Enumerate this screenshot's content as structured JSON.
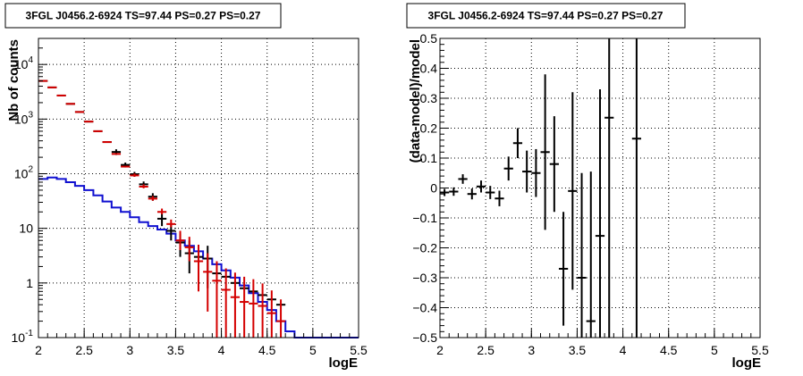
{
  "colors": {
    "data": "#000000",
    "model_total": "#d40000",
    "model_source": "#1010d0",
    "grid": "#000000"
  },
  "chart_data": [
    {
      "type": "line",
      "title": "3FGL J0456.2-6924 TS=97.44 PS=0.27 PS=0.27",
      "xlabel": "logE",
      "ylabel": "Nb of counts",
      "xlim": [
        2,
        5.5
      ],
      "ylim": [
        0.1,
        30000
      ],
      "yscale": "log",
      "grid": true,
      "xticks": [
        "2",
        "2.5",
        "3",
        "3.5",
        "4",
        "4.5",
        "5",
        "5.5"
      ],
      "yticks": [
        {
          "value": 0.1,
          "label": "10",
          "exp": "-1"
        },
        {
          "value": 1,
          "label": "1",
          "exp": ""
        },
        {
          "value": 10,
          "label": "10",
          "exp": ""
        },
        {
          "value": 100,
          "label": "10",
          "exp": "2"
        },
        {
          "value": 1000,
          "label": "10",
          "exp": "3"
        },
        {
          "value": 10000,
          "label": "10",
          "exp": "4"
        }
      ],
      "bin_width": 0.1,
      "series": [
        {
          "kind": "points",
          "color": "#000000",
          "x": [
            2.05,
            2.15,
            2.25,
            2.35,
            2.45,
            2.55,
            2.65,
            2.75,
            2.85,
            2.95,
            3.05,
            3.15,
            3.25,
            3.35,
            3.45,
            3.55,
            3.65,
            3.75,
            3.85,
            3.95,
            4.05,
            4.15,
            4.25,
            4.35,
            4.45,
            4.55,
            4.65
          ],
          "y": [
            5000,
            3800,
            2700,
            1900,
            1350,
            900,
            600,
            380,
            250,
            145,
            98,
            64,
            38,
            15,
            9,
            5.5,
            3.5,
            3.0,
            2.8,
            1.5,
            1.3,
            1.0,
            0.8,
            0.7,
            0.6,
            0.5,
            0.4
          ],
          "yerr_lo": [
            0,
            0,
            0,
            0,
            0,
            0,
            0,
            0,
            30,
            15,
            10,
            8,
            6,
            4,
            3,
            2.5,
            2.0,
            1.5,
            2,
            0,
            0,
            0,
            0,
            0,
            0,
            0,
            0
          ],
          "yerr_hi": [
            0,
            0,
            0,
            0,
            0,
            0,
            0,
            0,
            30,
            15,
            10,
            8,
            6,
            4,
            3,
            2.5,
            2.5,
            2.0,
            2,
            0,
            0,
            0,
            0,
            0,
            0,
            0,
            0
          ]
        },
        {
          "kind": "points",
          "color": "#d40000",
          "x": [
            2.05,
            2.15,
            2.25,
            2.35,
            2.45,
            2.55,
            2.65,
            2.75,
            2.85,
            2.95,
            3.05,
            3.15,
            3.25,
            3.35,
            3.45,
            3.55,
            3.65,
            3.75,
            3.85,
            3.95,
            4.05,
            4.15,
            4.25,
            4.35,
            4.45,
            4.55,
            4.65
          ],
          "y": [
            5000,
            3800,
            2700,
            1900,
            1350,
            900,
            600,
            380,
            230,
            135,
            93,
            58,
            35,
            20,
            12,
            6.0,
            4.5,
            2.5,
            1.6,
            1.1,
            0.75,
            0.55,
            0.45,
            0.42,
            0.38,
            0.28,
            0.2
          ],
          "yerr_lo": [
            0,
            0,
            0,
            0,
            0,
            0,
            0,
            0,
            0,
            0,
            5,
            4,
            3,
            2,
            1.5,
            2,
            2,
            1.8,
            1.3,
            1.0,
            0.65,
            0.45,
            0.4,
            0.38,
            0.34,
            0.24,
            0.18
          ],
          "yerr_hi": [
            0,
            0,
            0,
            0,
            0,
            0,
            0,
            0,
            0,
            0,
            8,
            6,
            4,
            3,
            2.5,
            3,
            2.5,
            2.5,
            1.9,
            1.4,
            1.1,
            1.0,
            0.85,
            0.75,
            0.6,
            0.45,
            0.3
          ]
        },
        {
          "kind": "step",
          "color": "#1010d0",
          "x": [
            2.05,
            2.15,
            2.25,
            2.35,
            2.45,
            2.55,
            2.65,
            2.75,
            2.85,
            2.95,
            3.05,
            3.15,
            3.25,
            3.35,
            3.45,
            3.55,
            3.65,
            3.75,
            3.85,
            3.95,
            4.05,
            4.15,
            4.25,
            4.35,
            4.45,
            4.55,
            4.65,
            4.75,
            4.85,
            4.95,
            5.05,
            5.15,
            5.25,
            5.35,
            5.45
          ],
          "y": [
            80,
            85,
            80,
            70,
            60,
            50,
            40,
            31,
            24,
            20,
            16,
            13,
            11,
            9.5,
            8,
            6,
            4.8,
            3.8,
            2.8,
            2.2,
            1.7,
            1.25,
            0.9,
            0.65,
            0.45,
            0.32,
            0.2,
            0.13,
            0.1,
            0.1,
            0.1,
            0.1,
            0.1,
            0.1,
            0.1
          ]
        }
      ]
    },
    {
      "type": "scatter",
      "title": "3FGL J0456.2-6924 TS=97.44 PS=0.27 PS=0.27",
      "xlabel": "logE",
      "ylabel": "(data-model)/model",
      "xlim": [
        2,
        5.5
      ],
      "ylim": [
        -0.5,
        0.5
      ],
      "grid": true,
      "xticks": [
        "2",
        "2.5",
        "3",
        "3.5",
        "4",
        "4.5",
        "5",
        "5.5"
      ],
      "yticks": [
        "−0.5",
        "−0.4",
        "−0.3",
        "−0.2",
        "−0.1",
        "0",
        "0.1",
        "0.2",
        "0.3",
        "0.4",
        "0.5"
      ],
      "bin_width": 0.1,
      "series": [
        {
          "color": "#000000",
          "x": [
            2.05,
            2.15,
            2.25,
            2.35,
            2.45,
            2.55,
            2.65,
            2.75,
            2.85,
            2.95,
            3.05,
            3.15,
            3.25,
            3.35,
            3.45,
            3.55,
            3.65,
            3.75,
            3.85,
            4.15
          ],
          "y": [
            -0.015,
            -0.012,
            0.03,
            -0.02,
            0.005,
            -0.015,
            -0.035,
            0.065,
            0.15,
            0.055,
            0.05,
            0.12,
            0.08,
            -0.27,
            -0.01,
            -0.3,
            -0.445,
            -0.16,
            0.235,
            0.165
          ],
          "yerr": [
            0.012,
            0.014,
            0.016,
            0.018,
            0.02,
            0.022,
            0.026,
            0.04,
            0.05,
            0.07,
            0.08,
            0.26,
            0.16,
            0.19,
            0.33,
            0.35,
            0.5,
            0.49,
            0.8,
            0.9
          ]
        }
      ]
    }
  ]
}
